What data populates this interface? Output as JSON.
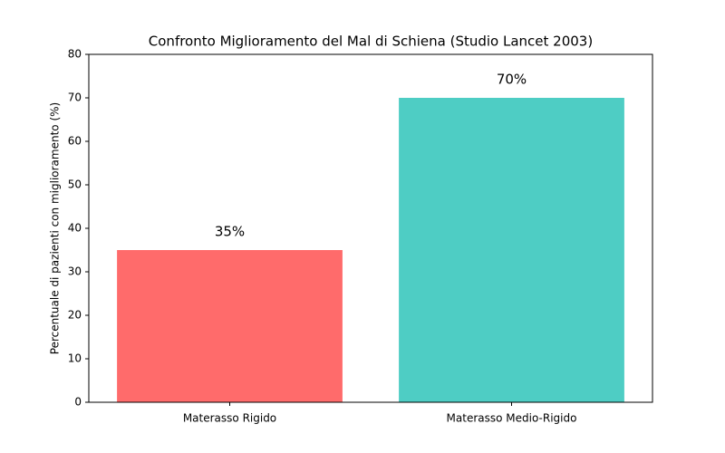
{
  "chart_data": {
    "type": "bar",
    "title": "Confronto Miglioramento del Mal di Schiena (Studio Lancet 2003)",
    "y_label": "Percentuale di pazienti con miglioramento (%)",
    "categories": [
      "Materasso Rigido",
      "Materasso Medio-Rigido"
    ],
    "values": [
      35,
      70
    ],
    "value_labels": [
      "35%",
      "70%"
    ],
    "colors": [
      "#ff6b6b",
      "#4ecdc4"
    ],
    "ylim": [
      0,
      80
    ],
    "yticks": [
      0,
      10,
      20,
      30,
      40,
      50,
      60,
      70,
      80
    ],
    "grid": false
  }
}
